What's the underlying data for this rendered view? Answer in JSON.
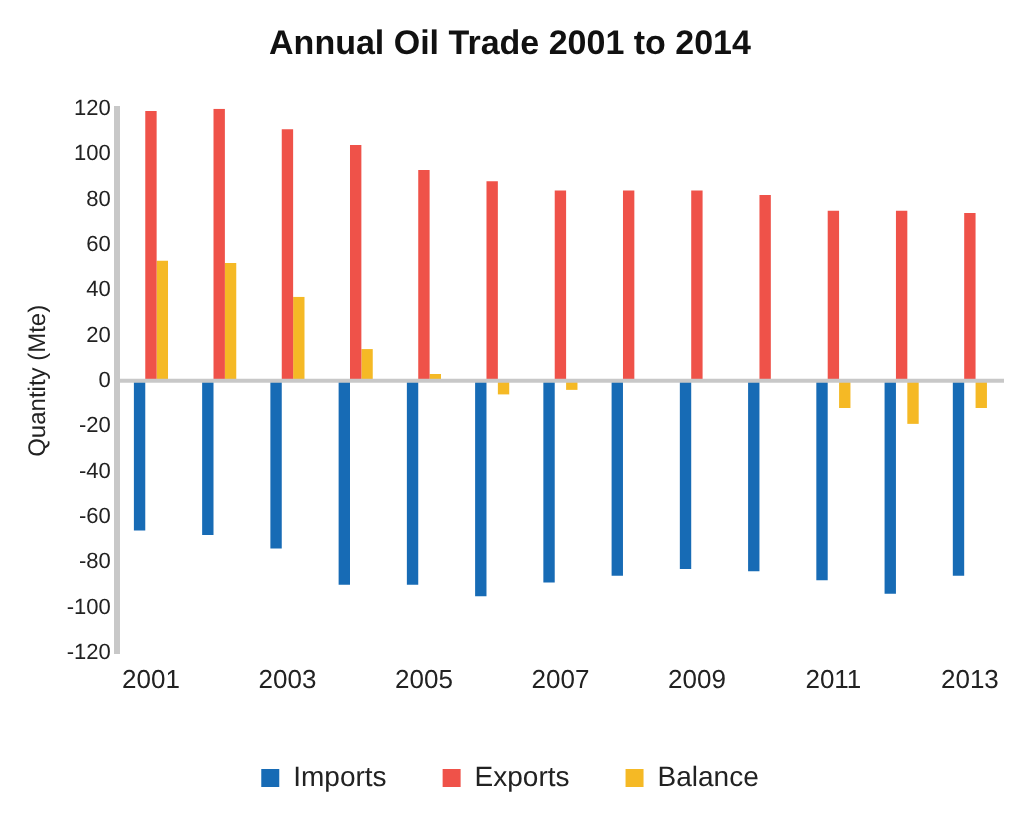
{
  "chart_data": {
    "type": "bar",
    "title": "Annual Oil Trade 2001 to 2014",
    "ylabel": "Quantity (Mte)",
    "categories": [
      "2001",
      null,
      "2003",
      null,
      "2005",
      null,
      "2007",
      null,
      "2009",
      null,
      "2011",
      null,
      "2013"
    ],
    "series": [
      {
        "name": "Imports",
        "color": "#176bb5",
        "values": [
          -66,
          -68,
          -74,
          -90,
          -90,
          -95,
          -89,
          -86,
          -83,
          -84,
          -88,
          -94,
          -86
        ]
      },
      {
        "name": "Exports",
        "color": "#ef5249",
        "values": [
          119,
          120,
          111,
          104,
          93,
          88,
          84,
          84,
          84,
          82,
          75,
          75,
          74
        ]
      },
      {
        "name": "Balance",
        "color": "#f5b925",
        "values": [
          53,
          52,
          37,
          14,
          3,
          -6,
          -4,
          null,
          0,
          null,
          -12,
          -19,
          -12
        ]
      }
    ],
    "ylim": [
      -120,
      120
    ],
    "yticks": [
      -120,
      -100,
      -80,
      -60,
      -40,
      -20,
      0,
      20,
      40,
      60,
      80,
      100,
      120
    ],
    "ref_lines": [
      {
        "axis": "y",
        "value": 0,
        "color": "#c8c8c8"
      }
    ],
    "grid": false,
    "legend": "bottom"
  }
}
